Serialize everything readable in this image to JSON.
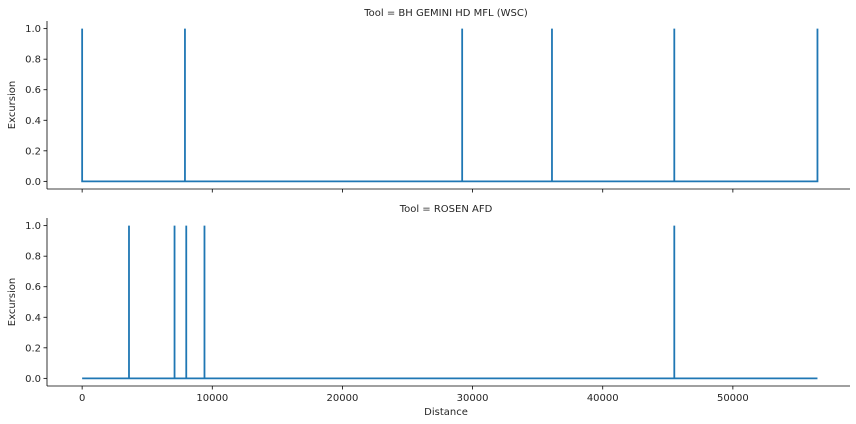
{
  "chart_data": {
    "type": "line",
    "xlabel": "Distance",
    "ylabel": "Excursion",
    "xlim": [
      -2700,
      59000
    ],
    "ylim": [
      -0.05,
      1.05
    ],
    "xticks": [
      0,
      10000,
      20000,
      30000,
      40000,
      50000
    ],
    "yticks": [
      0.0,
      0.2,
      0.4,
      0.6,
      0.8,
      1.0
    ],
    "line_color": "#1f77b4",
    "x_range": [
      0,
      56500
    ],
    "panels": [
      {
        "title": "Tool = BH GEMINI HD MFL (WSC)",
        "spikes_at": [
          0,
          7900,
          29200,
          36100,
          45500,
          56500
        ],
        "spike_value": 1.0,
        "baseline": 0.0
      },
      {
        "title": "Tool = ROSEN AFD",
        "spikes_at": [
          3600,
          7100,
          8000,
          9400,
          45500
        ],
        "spike_value": 1.0,
        "baseline": 0.0
      }
    ]
  }
}
